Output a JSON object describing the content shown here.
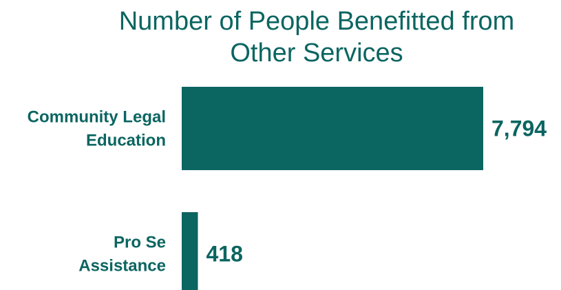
{
  "chart_data": {
    "type": "bar",
    "orientation": "horizontal",
    "title_lines": [
      "Number of People Benefitted from",
      "Other Services"
    ],
    "categories": [
      [
        "Community Legal",
        "Education"
      ],
      [
        "Pro Se",
        "Assistance"
      ]
    ],
    "values": [
      7794,
      418
    ],
    "value_labels": [
      "7,794",
      "418"
    ],
    "xlim": [
      0,
      7794
    ],
    "grid": false,
    "legend": "none",
    "colors": {
      "bar": "#0b6561",
      "text": "#0b6561"
    }
  }
}
